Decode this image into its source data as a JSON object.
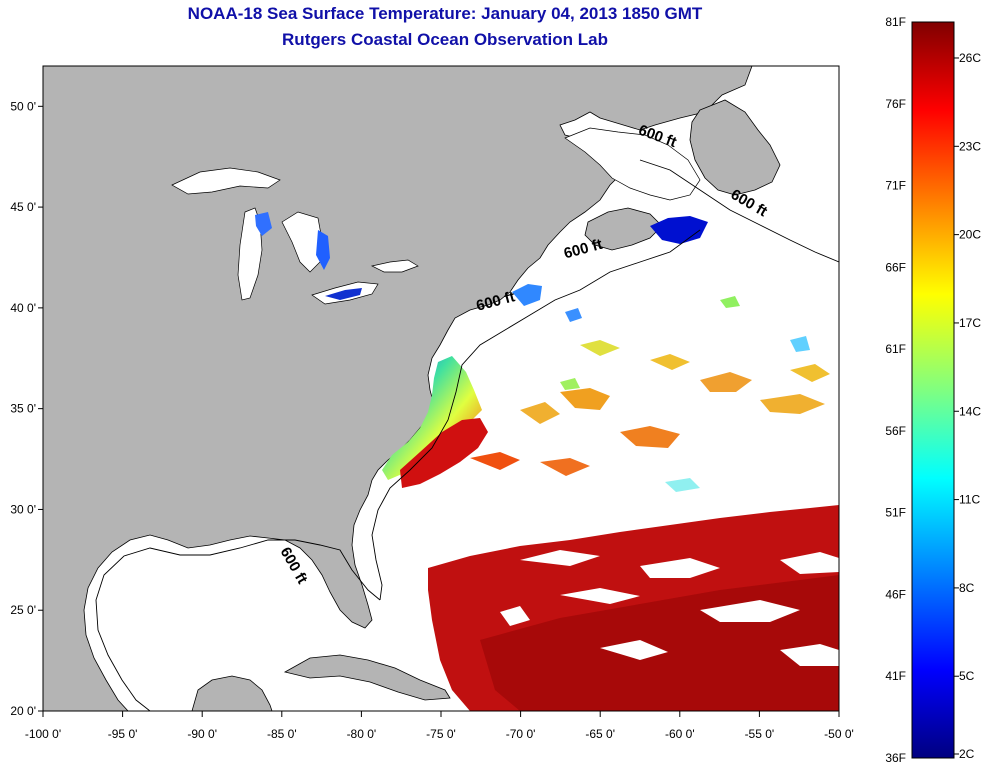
{
  "header": {
    "title": "NOAA-18 Sea Surface Temperature:  January 04, 2013 1850 GMT",
    "subtitle": "Rutgers Coastal Ocean Observation Lab"
  },
  "map": {
    "longitude_range": [
      -100,
      -50
    ],
    "latitude_range": [
      20,
      52
    ],
    "longitude_ticks": [
      -100,
      -95,
      -90,
      -85,
      -80,
      -75,
      -70,
      -65,
      -60,
      -55,
      -50
    ],
    "longitude_tick_labels": [
      "-100 0'",
      "-95 0'",
      "-90 0'",
      "-85 0'",
      "-80 0'",
      "-75 0'",
      "-70 0'",
      "-65 0'",
      "-60 0'",
      "-55 0'",
      "-50 0'"
    ],
    "latitude_ticks": [
      20,
      25,
      30,
      35,
      40,
      45,
      50
    ],
    "latitude_tick_labels": [
      "20 0'",
      "25 0'",
      "30 0'",
      "35 0'",
      "40 0'",
      "45 0'",
      "50 0'"
    ],
    "isobath_labels": [
      {
        "text": "600 ft",
        "lon": -61.5,
        "lat": 48.3,
        "rotate": 20
      },
      {
        "text": "600 ft",
        "lon": -55.8,
        "lat": 45.0,
        "rotate": 30
      },
      {
        "text": "600 ft",
        "lon": -66.0,
        "lat": 42.7,
        "rotate": -15
      },
      {
        "text": "600 ft",
        "lon": -71.5,
        "lat": 40.1,
        "rotate": -15
      },
      {
        "text": "600 ft",
        "lon": -84.5,
        "lat": 27.1,
        "rotate": 60
      }
    ],
    "colors": {
      "land": "#b4b4b4",
      "cloud": "#ffffff",
      "outline": "#000000"
    }
  },
  "colorbar": {
    "fahrenheit_labels": [
      "81F",
      "76F",
      "71F",
      "66F",
      "61F",
      "56F",
      "51F",
      "46F",
      "41F",
      "36F"
    ],
    "fahrenheit_values": [
      81,
      76,
      71,
      66,
      61,
      56,
      51,
      46,
      41,
      36
    ],
    "celsius_labels": [
      "26C",
      "23C",
      "20C",
      "17C",
      "14C",
      "11C",
      "8C",
      "5C",
      "2C"
    ],
    "celsius_values": [
      26,
      23,
      20,
      17,
      14,
      11,
      8,
      5,
      2
    ],
    "range_f": [
      36,
      81
    ],
    "gradient": [
      "#800000",
      "#ff0000",
      "#ff8000",
      "#ffff00",
      "#80ff80",
      "#00ffff",
      "#0080ff",
      "#0000ff",
      "#000080"
    ]
  }
}
